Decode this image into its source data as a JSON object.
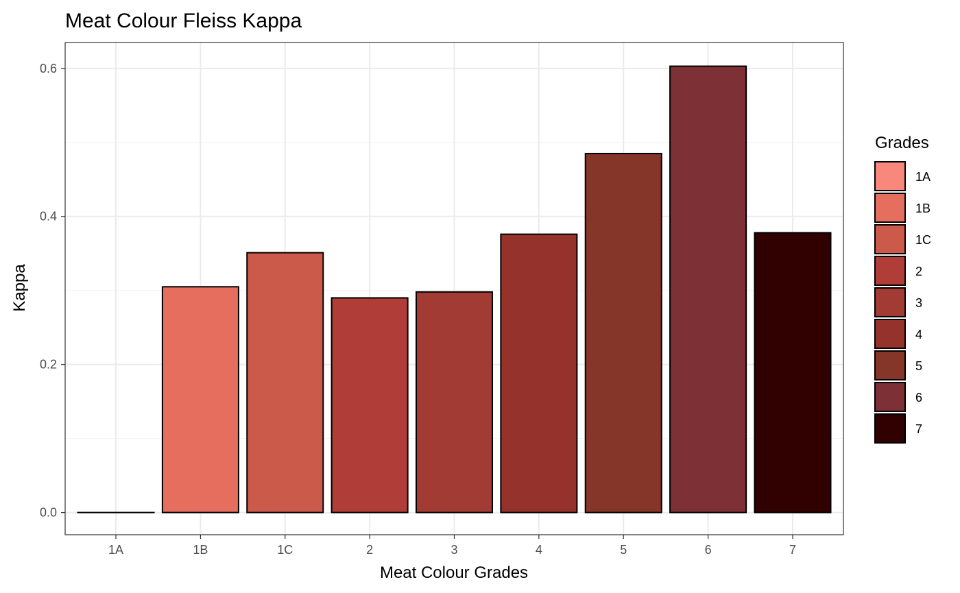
{
  "chart_data": {
    "type": "bar",
    "title": "Meat Colour Fleiss Kappa",
    "xlabel": "Meat Colour Grades",
    "ylabel": "Kappa",
    "categories": [
      "1A",
      "1B",
      "1C",
      "2",
      "3",
      "4",
      "5",
      "6",
      "7"
    ],
    "values": [
      0.0,
      0.305,
      0.351,
      0.29,
      0.298,
      0.376,
      0.485,
      0.603,
      0.378
    ],
    "colors": [
      "#F8877C",
      "#E56E5E",
      "#CB5A4B",
      "#B03D37",
      "#A33B35",
      "#96322C",
      "#853628",
      "#7D3035",
      "#310000"
    ],
    "ylim": [
      -0.03,
      0.635
    ],
    "yticks": [
      {
        "value": 0.0,
        "label": "0.0"
      },
      {
        "value": 0.2,
        "label": "0.2"
      },
      {
        "value": 0.4,
        "label": "0.4"
      },
      {
        "value": 0.6,
        "label": "0.6"
      }
    ],
    "grid": true,
    "legend": {
      "title": "Grades",
      "position": "right",
      "entries": [
        "1A",
        "1B",
        "1C",
        "2",
        "3",
        "4",
        "5",
        "6",
        "7"
      ]
    }
  }
}
